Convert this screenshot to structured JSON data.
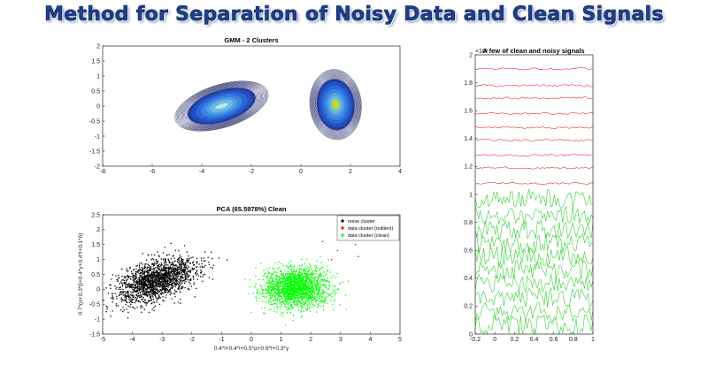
{
  "title": "Method for Separation of Noisy Data and Clean Signals",
  "chart_data": [
    {
      "type": "contour",
      "title": "GMM - 2 Clusters",
      "xlabel": "",
      "ylabel": "",
      "xlim": [
        -8,
        4
      ],
      "ylim": [
        -2,
        2
      ],
      "xticks": [
        -8,
        -6,
        -4,
        -2,
        0,
        2,
        4
      ],
      "yticks": [
        -2,
        -1.5,
        -1,
        -0.5,
        0,
        0.5,
        1,
        1.5,
        2
      ],
      "series": [
        {
          "center": [
            -3.2,
            0.0
          ],
          "spread": [
            1.5,
            0.55
          ],
          "tilt": 0.3,
          "peak_color": "#bfe8f2"
        },
        {
          "center": [
            1.4,
            0.05
          ],
          "spread": [
            0.8,
            0.9
          ],
          "tilt": 0.1,
          "peak_color": "#f2c81e"
        }
      ]
    },
    {
      "type": "scatter",
      "title": "PCA (65.5978%) Clean",
      "xlabel": "0.4*l+0.4*i+0.5*α+0.6*l+0.3*γ",
      "ylabel": "0.7*(α+0.3*β+0.4*γ+0.4*l+0.1*δ)",
      "xlim": [
        -5,
        5
      ],
      "ylim": [
        -1.5,
        2.5
      ],
      "xticks": [
        -5,
        -4,
        -3,
        -2,
        -1,
        0,
        1,
        2,
        3,
        4,
        5
      ],
      "yticks": [
        -1.5,
        -1,
        -0.5,
        0,
        0.5,
        1,
        1.5,
        2,
        2.5
      ],
      "legend": "top-right",
      "series": [
        {
          "name": "noise cluster",
          "color": "#000000",
          "center": [
            -3.2,
            0.3
          ],
          "spread": [
            0.7,
            0.3
          ],
          "tilt": 0.35,
          "count": 1800
        },
        {
          "name": "data cluster (outliers)",
          "color": "#ff0000",
          "points": [
            [
              3.5,
              1.5
            ],
            [
              3.2,
              1.7
            ],
            [
              2.9,
              1.3
            ],
            [
              3.7,
              1.9
            ],
            [
              2.7,
              1.0
            ],
            [
              3.3,
              1.95
            ],
            [
              3.6,
              1.1
            ],
            [
              2.4,
              1.6
            ]
          ]
        },
        {
          "name": "data cluster (clean)",
          "color": "#00ff00",
          "center": [
            1.5,
            0.05
          ],
          "spread": [
            0.55,
            0.33
          ],
          "tilt": 0.05,
          "count": 1800
        }
      ]
    },
    {
      "type": "line",
      "title": "A few of clean and noisy signals",
      "xlabel": "",
      "ylabel": "",
      "xlim": [
        -0.2,
        1
      ],
      "ylim": [
        0,
        20000
      ],
      "y_exponent_label": "×10⁴",
      "xticks": [
        -0.2,
        0,
        0.2,
        0.4,
        0.6,
        0.8,
        1
      ],
      "yticks": [
        0,
        0.2,
        0.4,
        0.6,
        0.8,
        1,
        1.2,
        1.4,
        1.6,
        1.8,
        2
      ],
      "series": [
        {
          "name": "",
          "color": "#ee1c1c",
          "offsets": [
            19000,
            17800,
            16900,
            15800,
            14800,
            13900,
            12800,
            11900,
            10800
          ],
          "amplitude": 120
        },
        {
          "name": "",
          "color": "#22cc22",
          "offsets": [
            9700,
            8500,
            7500,
            6500,
            5600,
            4600,
            3600,
            2600,
            1600,
            700
          ],
          "amplitude": 700
        }
      ]
    }
  ]
}
